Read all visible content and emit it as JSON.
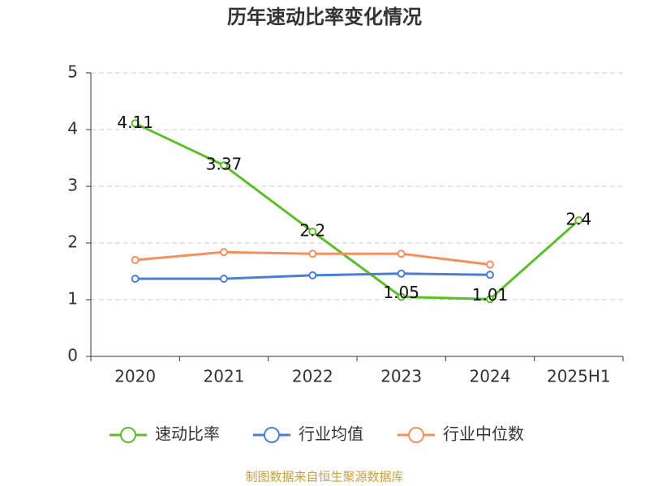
{
  "chart_data": {
    "type": "line",
    "title": "历年速动比率变化情况",
    "categories": [
      "2020",
      "2021",
      "2022",
      "2023",
      "2024",
      "2025H1"
    ],
    "series": [
      {
        "name": "速动比率",
        "color": "#5cbf2a",
        "values": [
          4.11,
          3.37,
          2.2,
          1.05,
          1.01,
          2.4
        ]
      },
      {
        "name": "行业均值",
        "color": "#4a7fd6",
        "values": [
          1.37,
          1.37,
          1.43,
          1.46,
          1.44,
          null
        ]
      },
      {
        "name": "行业中位数",
        "color": "#f5905c",
        "values": [
          1.7,
          1.84,
          1.81,
          1.81,
          1.62,
          null
        ]
      }
    ],
    "ylim": [
      0,
      5
    ],
    "yticks": [
      0,
      1,
      2,
      3,
      4,
      5
    ],
    "grid": true,
    "source": "制图数据来自恒生聚源数据库"
  }
}
